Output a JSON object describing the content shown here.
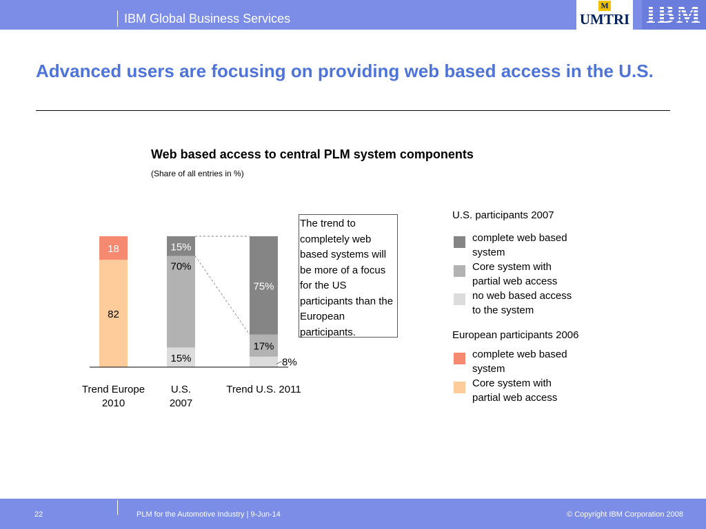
{
  "header": {
    "brand": "IBM Global Business Services",
    "logo_umtri": "UMTRI",
    "logo_umtri_mark": "M",
    "logo_ibm": "IBM"
  },
  "slide": {
    "title": "Advanced users are focusing on providing web based access in the U.S."
  },
  "chart_data": {
    "type": "bar",
    "stacked": true,
    "title": "Web based access to central PLM system components",
    "subtitle": "(Share of all entries in %)",
    "categories": [
      "Trend Europe\n2010",
      "U.S.\n2007",
      "Trend U.S. 2011"
    ],
    "bars": [
      {
        "category": "Trend Europe\n2010",
        "segments": [
          {
            "series": "Core system with partial web access (Europe)",
            "value": 82,
            "label": "82",
            "color": "#fecb9a",
            "labelColor": "#000000"
          },
          {
            "series": "complete web based system (Europe)",
            "value": 18,
            "label": "18",
            "color": "#f58a70",
            "labelColor": "#ffffff"
          }
        ]
      },
      {
        "category": "U.S.\n2007",
        "segments": [
          {
            "series": "no web based access to the system",
            "value": 15,
            "label": "15%",
            "color": "#dcdcdc",
            "labelColor": "#000000"
          },
          {
            "series": "Core system with partial web access",
            "value": 70,
            "label": "70%",
            "color": "#b2b2b2",
            "labelColor": "#000000"
          },
          {
            "series": "complete web based system",
            "value": 15,
            "label": "15%",
            "color": "#858585",
            "labelColor": "#ffffff"
          }
        ]
      },
      {
        "category": "Trend U.S. 2011",
        "segments": [
          {
            "series": "no web based access to the system",
            "value": 8,
            "label": "8%",
            "color": "#dcdcdc",
            "labelColor": "#000000",
            "outside": true
          },
          {
            "series": "Core system with partial web access",
            "value": 17,
            "label": "17%",
            "color": "#b2b2b2",
            "labelColor": "#000000"
          },
          {
            "series": "complete web based system",
            "value": 75,
            "label": "75%",
            "color": "#858585",
            "labelColor": "#ffffff"
          }
        ]
      }
    ],
    "ylim": [
      0,
      100
    ],
    "grid": false,
    "annotation": "The trend to completely web based systems will be more of a focus for the US participants than the European participants."
  },
  "legend": {
    "us_title": "U.S. participants 2007",
    "us_items": [
      {
        "label": "complete web based system",
        "color": "#858585"
      },
      {
        "label": "Core system with partial web access",
        "color": "#b2b2b2"
      },
      {
        "label": "no web based access to the system",
        "color": "#dcdcdc"
      }
    ],
    "eu_title": "European participants 2006",
    "eu_items": [
      {
        "label": "complete web based system",
        "color": "#f58a70"
      },
      {
        "label": "Core system with partial web access",
        "color": "#fecb9a"
      }
    ]
  },
  "footer": {
    "page": "22",
    "text": "PLM for the Automotive Industry |  9-Jun-14",
    "copyright": "© Copyright IBM Corporation 2008"
  }
}
